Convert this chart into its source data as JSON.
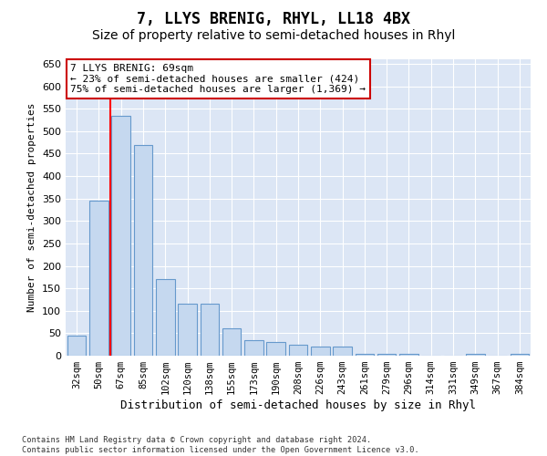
{
  "title": "7, LLYS BRENIG, RHYL, LL18 4BX",
  "subtitle": "Size of property relative to semi-detached houses in Rhyl",
  "xlabel": "Distribution of semi-detached houses by size in Rhyl",
  "ylabel": "Number of semi-detached properties",
  "categories": [
    "32sqm",
    "50sqm",
    "67sqm",
    "85sqm",
    "102sqm",
    "120sqm",
    "138sqm",
    "155sqm",
    "173sqm",
    "190sqm",
    "208sqm",
    "226sqm",
    "243sqm",
    "261sqm",
    "279sqm",
    "296sqm",
    "314sqm",
    "331sqm",
    "349sqm",
    "367sqm",
    "384sqm"
  ],
  "values": [
    45,
    345,
    535,
    470,
    170,
    115,
    115,
    60,
    35,
    30,
    25,
    20,
    20,
    5,
    5,
    5,
    0,
    0,
    5,
    0,
    5
  ],
  "bar_color": "#c5d8ef",
  "bar_edge_color": "#6699cc",
  "annotation_text": "7 LLYS BRENIG: 69sqm\n← 23% of semi-detached houses are smaller (424)\n75% of semi-detached houses are larger (1,369) →",
  "annotation_box_color": "#ffffff",
  "annotation_box_edge": "#cc0000",
  "red_line_x": 1.5,
  "ylim": [
    0,
    660
  ],
  "yticks": [
    0,
    50,
    100,
    150,
    200,
    250,
    300,
    350,
    400,
    450,
    500,
    550,
    600,
    650
  ],
  "background_color": "#dce6f5",
  "footer_text": "Contains HM Land Registry data © Crown copyright and database right 2024.\nContains public sector information licensed under the Open Government Licence v3.0.",
  "title_fontsize": 12,
  "subtitle_fontsize": 10,
  "xlabel_fontsize": 9,
  "ylabel_fontsize": 8
}
